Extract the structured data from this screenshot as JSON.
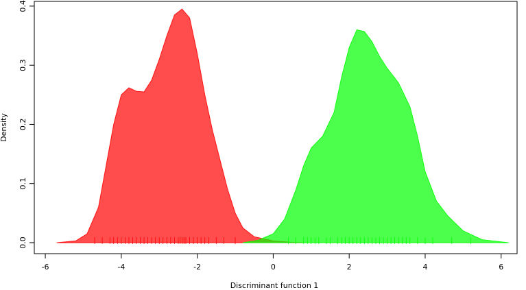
{
  "chart_data": {
    "type": "density",
    "xlabel": "Discriminant function 1",
    "ylabel": "Density",
    "xlim": [
      -6.29,
      6.42
    ],
    "ylim": [
      -0.0186,
      0.408
    ],
    "xticks": [
      -6,
      -4,
      -2,
      0,
      2,
      4,
      6
    ],
    "yticks": [
      {
        "value": 0,
        "label": "0.0"
      },
      0.1,
      0.2,
      0.3,
      0.4
    ],
    "series": [
      {
        "color": "#ff0000",
        "x": [
          -5.7,
          -5.2,
          -4.9,
          -4.6,
          -4.4,
          -4.2,
          -4.0,
          -3.8,
          -3.6,
          -3.4,
          -3.2,
          -3.0,
          -2.8,
          -2.6,
          -2.4,
          -2.2,
          -2.0,
          -1.8,
          -1.6,
          -1.4,
          -1.2,
          -1.0,
          -0.8,
          -0.5,
          0,
          0.5,
          0.8
        ],
        "values": [
          0,
          0.003,
          0.015,
          0.06,
          0.13,
          0.2,
          0.25,
          0.262,
          0.256,
          0.255,
          0.275,
          0.31,
          0.35,
          0.385,
          0.395,
          0.38,
          0.32,
          0.25,
          0.19,
          0.14,
          0.09,
          0.05,
          0.025,
          0.01,
          0.003,
          0.0005,
          0
        ],
        "rug": [
          -4.7,
          -4.5,
          -4.3,
          -4.2,
          -4.1,
          -4.0,
          -3.9,
          -3.8,
          -3.7,
          -3.6,
          -3.5,
          -3.4,
          -3.3,
          -3.2,
          -3.1,
          -3.0,
          -2.9,
          -2.8,
          -2.7,
          -2.6,
          -2.5,
          -2.45,
          -2.4,
          -2.35,
          -2.3,
          -2.2,
          -2.1,
          -2.0,
          -1.9,
          -1.8,
          -1.7,
          -1.5,
          -1.3,
          -1.0
        ]
      },
      {
        "color": "#00ff00",
        "x": [
          -0.8,
          -0.4,
          0,
          0.3,
          0.6,
          0.8,
          1.0,
          1.3,
          1.6,
          1.8,
          2.0,
          2.2,
          2.4,
          2.6,
          2.8,
          3.0,
          3.3,
          3.6,
          3.8,
          4.0,
          4.3,
          4.6,
          5.0,
          5.5,
          6.2
        ],
        "values": [
          0,
          0.004,
          0.015,
          0.04,
          0.09,
          0.13,
          0.16,
          0.18,
          0.22,
          0.28,
          0.33,
          0.36,
          0.357,
          0.34,
          0.315,
          0.295,
          0.27,
          0.23,
          0.18,
          0.12,
          0.07,
          0.045,
          0.02,
          0.005,
          0
        ],
        "rug": [
          0.4,
          0.6,
          0.8,
          0.9,
          1.0,
          1.1,
          1.2,
          1.4,
          1.5,
          1.7,
          1.8,
          1.9,
          2.0,
          2.1,
          2.2,
          2.3,
          2.4,
          2.5,
          2.6,
          2.7,
          2.8,
          2.9,
          3.0,
          3.1,
          3.2,
          3.3,
          3.4,
          3.5,
          3.6,
          3.8,
          4.0,
          4.2,
          4.7,
          5.2
        ]
      }
    ]
  }
}
